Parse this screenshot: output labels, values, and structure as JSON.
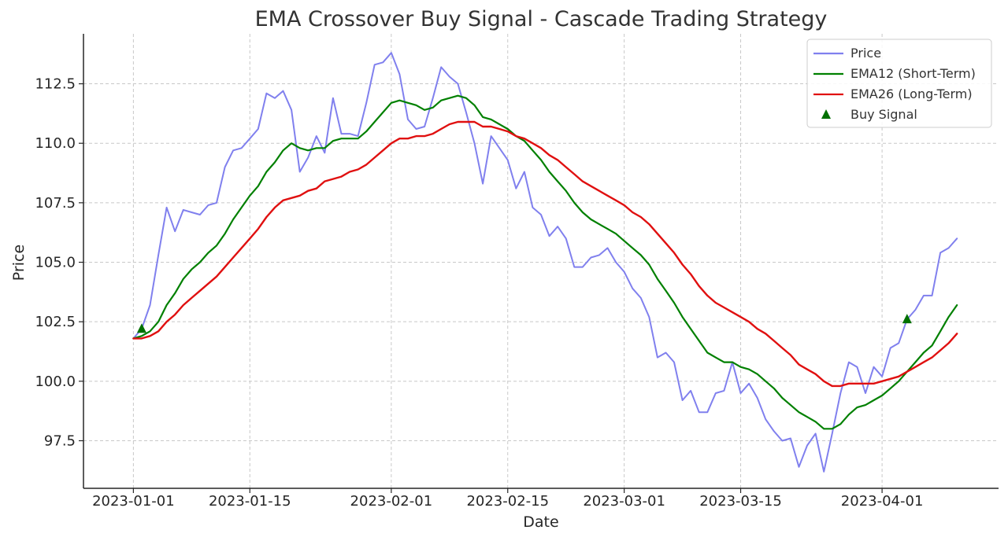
{
  "chart_data": {
    "type": "line",
    "title": "EMA Crossover Buy Signal - Cascade Trading Strategy",
    "xlabel": "Date",
    "ylabel": "Price",
    "x_start": "2023-01-01",
    "xlim": [
      "2022-12-26",
      "2023-04-15"
    ],
    "ylim": [
      95.5,
      114.6
    ],
    "x_ticks": [
      "2023-01-01",
      "2023-01-15",
      "2023-02-01",
      "2023-02-15",
      "2023-03-01",
      "2023-03-15",
      "2023-04-01"
    ],
    "y_ticks": [
      97.5,
      100.0,
      102.5,
      105.0,
      107.5,
      110.0,
      112.5
    ],
    "grid": true,
    "legend_position": "top-right",
    "series": [
      {
        "name": "Price",
        "color": "#8080ee",
        "values": [
          101.8,
          102.2,
          103.2,
          105.3,
          107.3,
          106.3,
          107.2,
          107.1,
          107.0,
          107.4,
          107.5,
          109.0,
          109.7,
          109.8,
          110.2,
          110.6,
          112.1,
          111.9,
          112.2,
          111.4,
          108.8,
          109.4,
          110.3,
          109.6,
          111.9,
          110.4,
          110.4,
          110.3,
          111.7,
          113.3,
          113.4,
          113.8,
          112.9,
          111.0,
          110.6,
          110.7,
          111.9,
          113.2,
          112.8,
          112.5,
          111.3,
          110.0,
          108.3,
          110.3,
          109.8,
          109.3,
          108.1,
          108.8,
          107.3,
          107.0,
          106.1,
          106.5,
          106.0,
          104.8,
          104.8,
          105.2,
          105.3,
          105.6,
          105.0,
          104.6,
          103.9,
          103.5,
          102.7,
          101.0,
          101.2,
          100.8,
          99.2,
          99.6,
          98.7,
          98.7,
          99.5,
          99.6,
          100.8,
          99.5,
          99.9,
          99.3,
          98.4,
          97.9,
          97.5,
          97.6,
          96.4,
          97.3,
          97.8,
          96.2,
          97.8,
          99.5,
          100.8,
          100.6,
          99.5,
          100.6,
          100.2,
          101.4,
          101.6,
          102.6,
          103.0,
          103.6,
          103.6,
          105.4,
          105.6,
          106.0
        ]
      },
      {
        "name": "EMA12 (Short-Term)",
        "color": "#008000",
        "values": [
          101.8,
          101.9,
          102.1,
          102.5,
          103.2,
          103.7,
          104.3,
          104.7,
          105.0,
          105.4,
          105.7,
          106.2,
          106.8,
          107.3,
          107.8,
          108.2,
          108.8,
          109.2,
          109.7,
          110.0,
          109.8,
          109.7,
          109.8,
          109.8,
          110.1,
          110.2,
          110.2,
          110.2,
          110.5,
          110.9,
          111.3,
          111.7,
          111.8,
          111.7,
          111.6,
          111.4,
          111.5,
          111.8,
          111.9,
          112.0,
          111.9,
          111.6,
          111.1,
          111.0,
          110.8,
          110.6,
          110.3,
          110.1,
          109.7,
          109.3,
          108.8,
          108.4,
          108.0,
          107.5,
          107.1,
          106.8,
          106.6,
          106.4,
          106.2,
          105.9,
          105.6,
          105.3,
          104.9,
          104.3,
          103.8,
          103.3,
          102.7,
          102.2,
          101.7,
          101.2,
          101.0,
          100.8,
          100.8,
          100.6,
          100.5,
          100.3,
          100.0,
          99.7,
          99.3,
          99.0,
          98.7,
          98.5,
          98.3,
          98.0,
          98.0,
          98.2,
          98.6,
          98.9,
          99.0,
          99.2,
          99.4,
          99.7,
          100.0,
          100.4,
          100.8,
          101.2,
          101.5,
          102.1,
          102.7,
          103.2
        ]
      },
      {
        "name": "EMA26 (Long-Term)",
        "color": "#e01010",
        "values": [
          101.8,
          101.8,
          101.9,
          102.1,
          102.5,
          102.8,
          103.2,
          103.5,
          103.8,
          104.1,
          104.4,
          104.8,
          105.2,
          105.6,
          106.0,
          106.4,
          106.9,
          107.3,
          107.6,
          107.7,
          107.8,
          108.0,
          108.1,
          108.4,
          108.5,
          108.6,
          108.8,
          108.9,
          109.1,
          109.4,
          109.7,
          110.0,
          110.2,
          110.2,
          110.3,
          110.3,
          110.4,
          110.6,
          110.8,
          110.9,
          110.9,
          110.9,
          110.7,
          110.7,
          110.6,
          110.5,
          110.3,
          110.2,
          110.0,
          109.8,
          109.5,
          109.3,
          109.0,
          108.7,
          108.4,
          108.2,
          108.0,
          107.8,
          107.6,
          107.4,
          107.1,
          106.9,
          106.6,
          106.2,
          105.8,
          105.4,
          104.9,
          104.5,
          104.0,
          103.6,
          103.3,
          103.1,
          102.9,
          102.7,
          102.5,
          102.2,
          102.0,
          101.7,
          101.4,
          101.1,
          100.7,
          100.5,
          100.3,
          100.0,
          99.8,
          99.8,
          99.9,
          99.9,
          99.9,
          99.9,
          100.0,
          100.1,
          100.2,
          100.4,
          100.6,
          100.8,
          101.0,
          101.3,
          101.6,
          102.0
        ]
      }
    ],
    "buy_signals": [
      {
        "name": "Buy Signal",
        "marker": "triangle-up",
        "color": "#007000",
        "points": [
          {
            "x": "2023-01-02",
            "y": 102.2
          },
          {
            "x": "2023-04-04",
            "y": 102.6
          }
        ]
      }
    ]
  }
}
